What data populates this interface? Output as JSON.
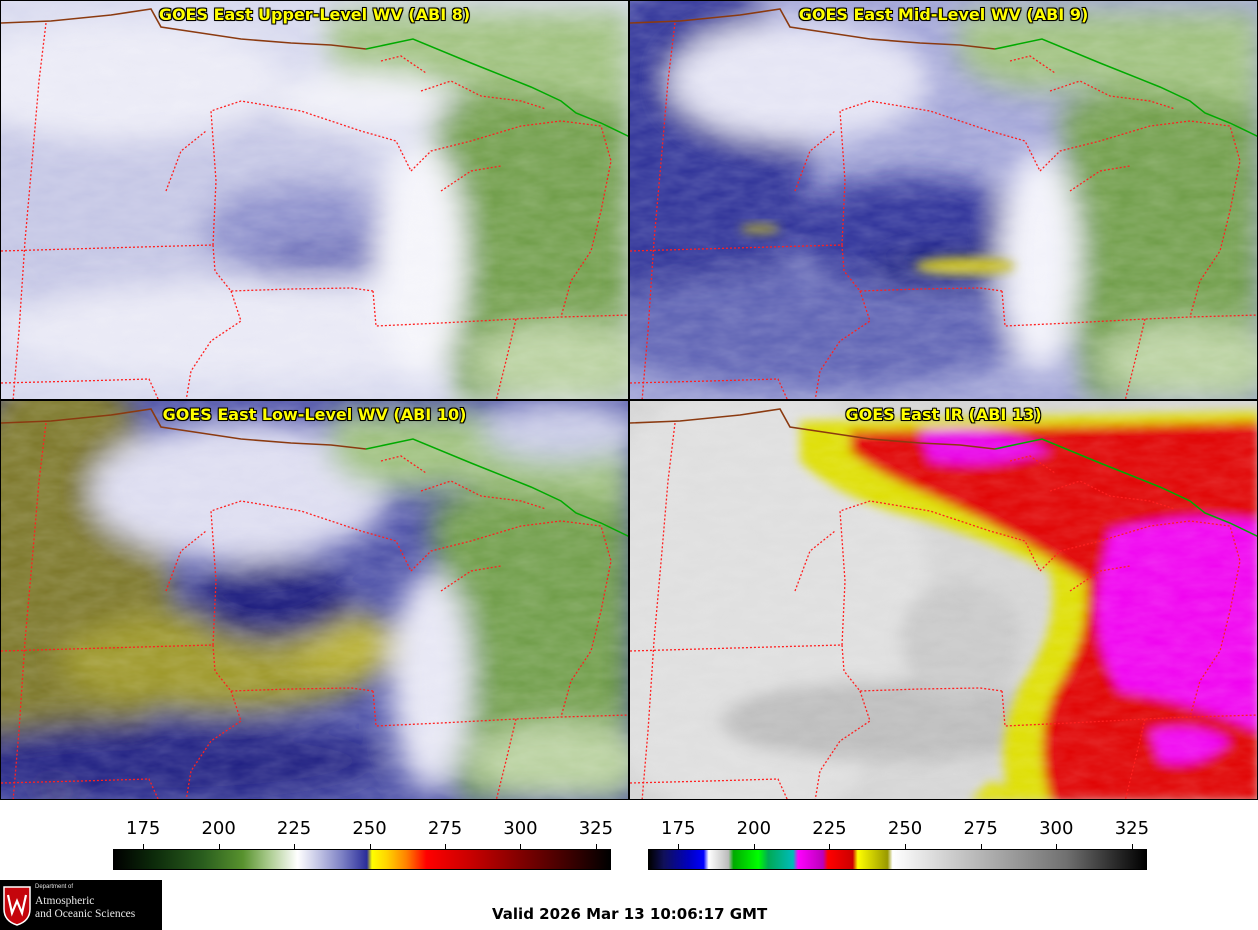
{
  "panels": [
    {
      "title": "GOES East Upper-Level WV (ABI 8)",
      "product": "wv-upper"
    },
    {
      "title": "GOES East Mid-Level WV (ABI 9)",
      "product": "wv-mid"
    },
    {
      "title": "GOES East Low-Level WV (ABI 10)",
      "product": "wv-low"
    },
    {
      "title": "GOES East IR (ABI 13)",
      "product": "ir"
    }
  ],
  "colorbars": {
    "wv": {
      "ticks": [
        "175",
        "200",
        "225",
        "250",
        "275",
        "300",
        "325"
      ],
      "min": 165,
      "max": 330
    },
    "ir": {
      "ticks": [
        "175",
        "200",
        "225",
        "250",
        "275",
        "300",
        "325"
      ],
      "min": 165,
      "max": 330
    }
  },
  "logo": {
    "dept_small": "Department of",
    "dept_line1": "Atmospheric",
    "dept_line2": "and Oceanic Sciences",
    "icon": "uw-crest-icon"
  },
  "valid_time": "Valid 2026 Mar 13 10:06:17 GMT",
  "colors": {
    "state_borders": "#ff2020",
    "country_border": "#00aa00",
    "coastline": "#8b3a10",
    "title_text": "#ffff00"
  }
}
